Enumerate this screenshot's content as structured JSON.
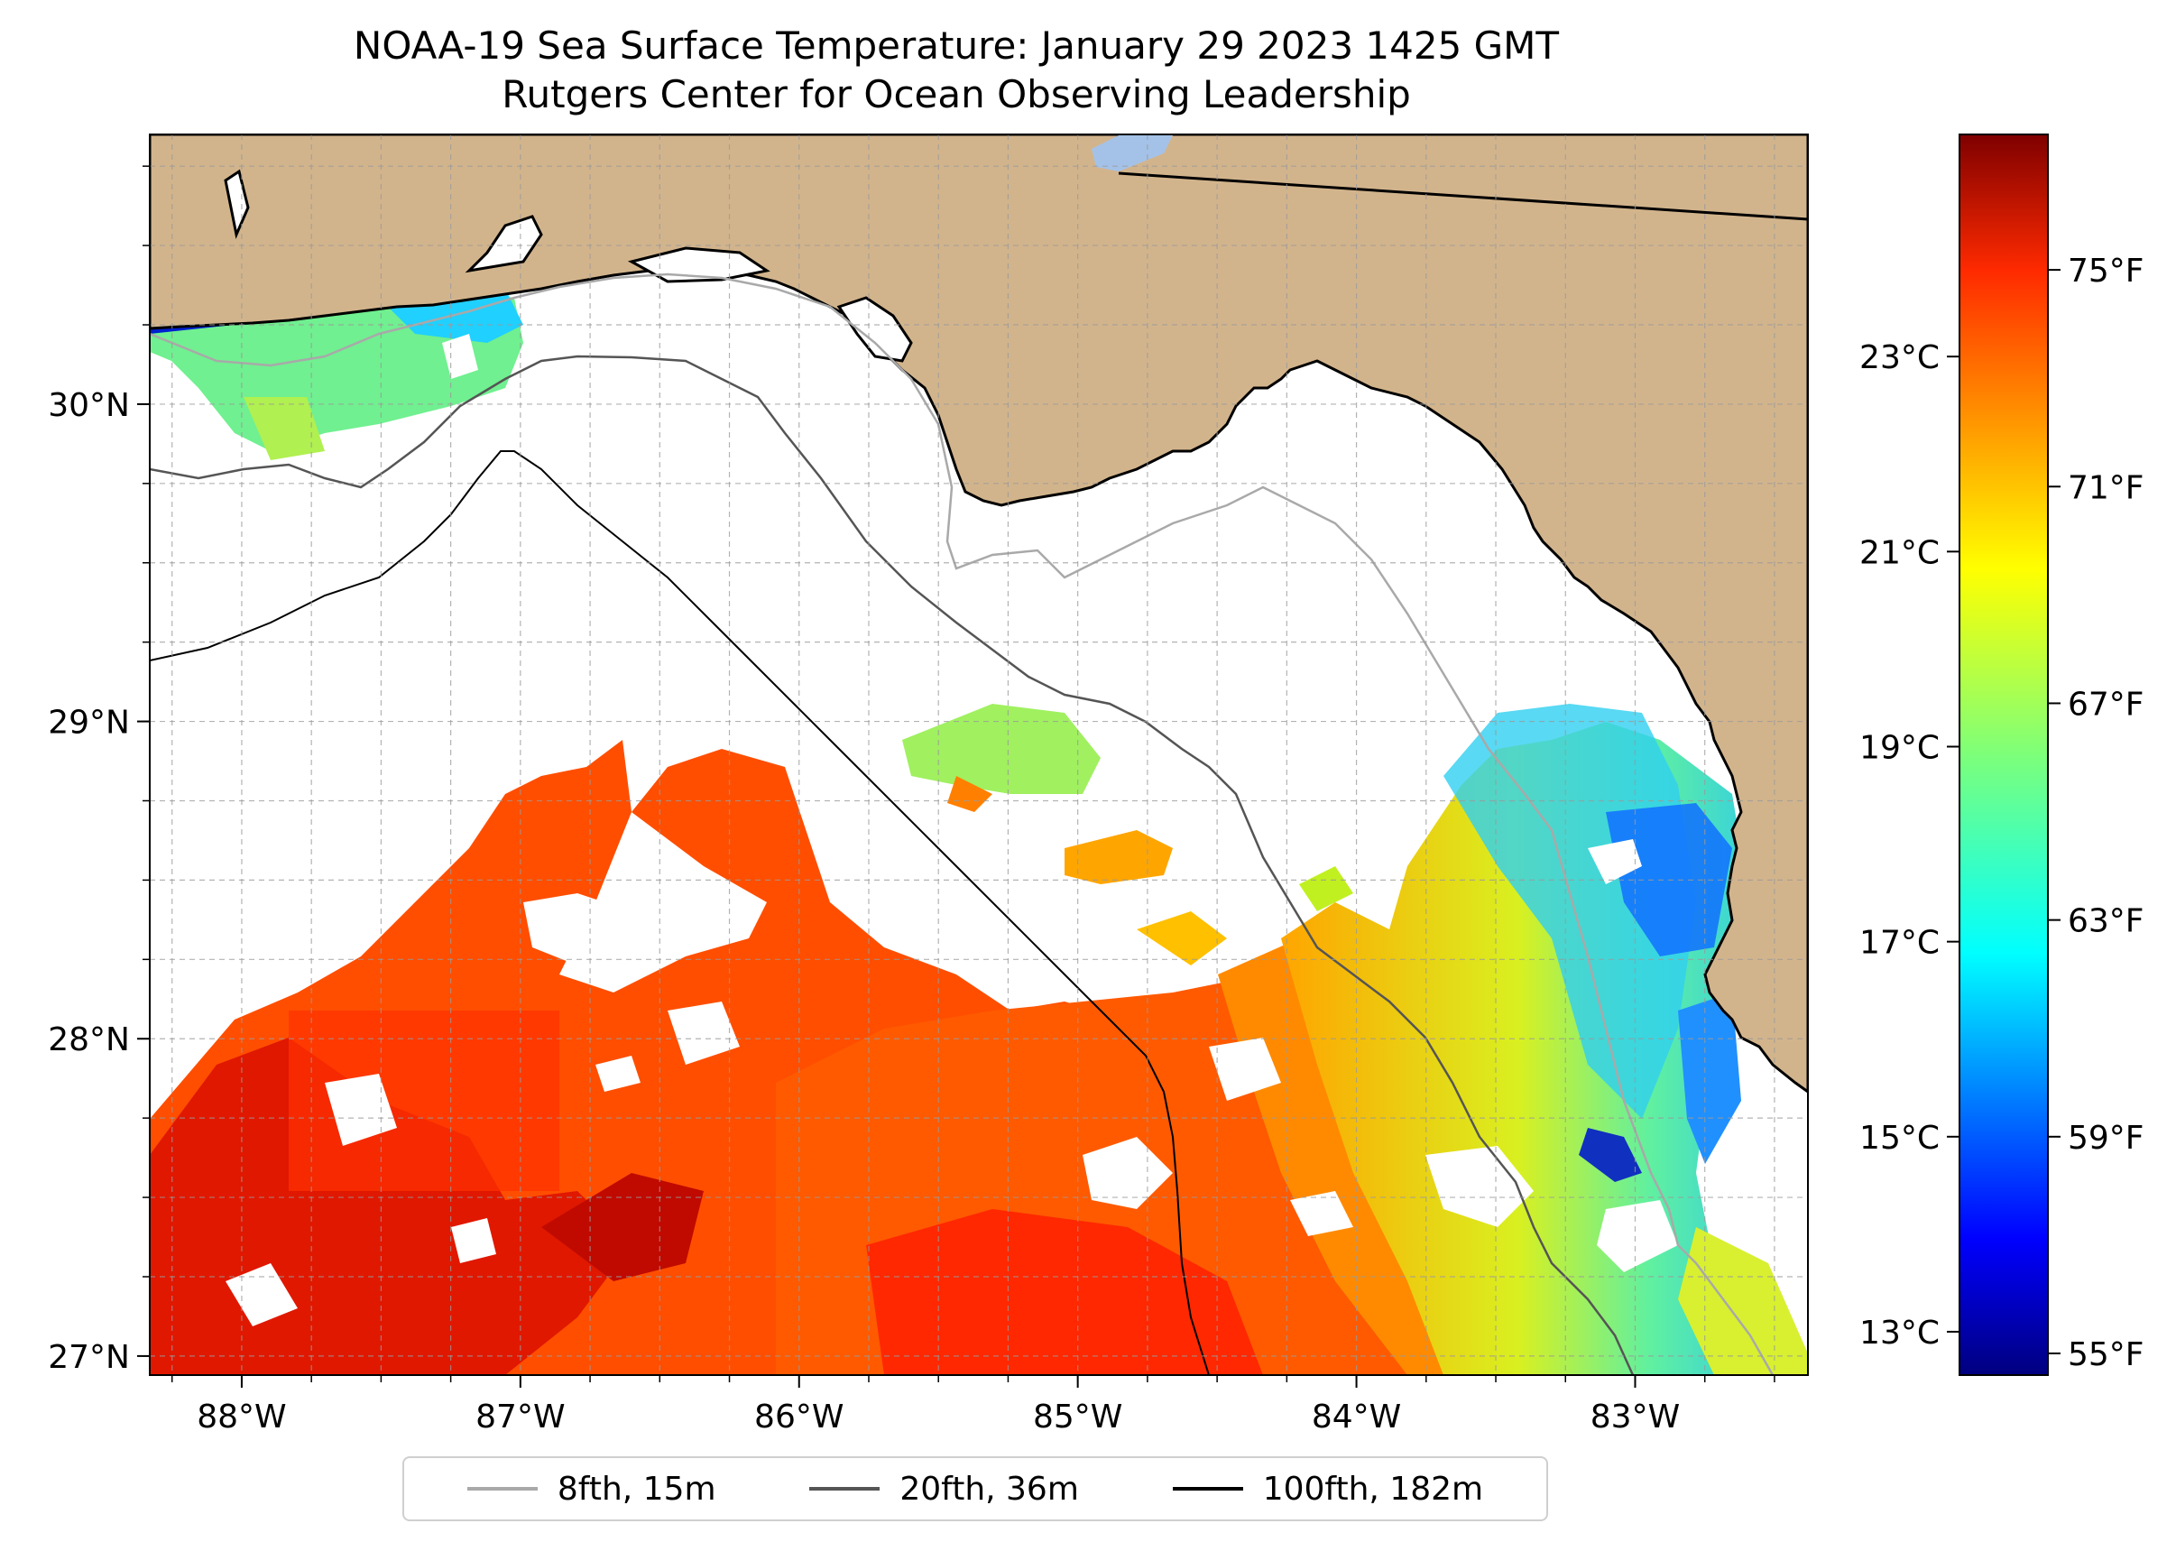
{
  "title": "NOAA-19 Sea Surface Temperature: January 29 2023 1425 GMT",
  "subtitle": "Rutgers Center for Ocean Observing Leadership",
  "map": {
    "lon_range": [
      -88.33,
      -82.38
    ],
    "lat_range": [
      26.94,
      30.85
    ],
    "lon_ticks": [
      {
        "value": -88,
        "label": "88°W"
      },
      {
        "value": -87,
        "label": "87°W"
      },
      {
        "value": -86,
        "label": "86°W"
      },
      {
        "value": -85,
        "label": "85°W"
      },
      {
        "value": -84,
        "label": "84°W"
      },
      {
        "value": -83,
        "label": "83°W"
      }
    ],
    "lat_ticks": [
      {
        "value": 30,
        "label": "30°N"
      },
      {
        "value": 29,
        "label": "29°N"
      },
      {
        "value": 28,
        "label": "28°N"
      },
      {
        "value": 27,
        "label": "27°N"
      }
    ],
    "gridlines": true,
    "land_color": "#d2b48c"
  },
  "colorbar": {
    "colormap": "jet",
    "range_f": [
      54.6,
      77.5
    ],
    "celsius_ticks": [
      {
        "value": 23,
        "label": "23°C"
      },
      {
        "value": 21,
        "label": "21°C"
      },
      {
        "value": 19,
        "label": "19°C"
      },
      {
        "value": 17,
        "label": "17°C"
      },
      {
        "value": 15,
        "label": "15°C"
      },
      {
        "value": 13,
        "label": "13°C"
      }
    ],
    "fahrenheit_ticks": [
      {
        "value": 75,
        "label": "75°F"
      },
      {
        "value": 71,
        "label": "71°F"
      },
      {
        "value": 67,
        "label": "67°F"
      },
      {
        "value": 63,
        "label": "63°F"
      },
      {
        "value": 59,
        "label": "59°F"
      },
      {
        "value": 55,
        "label": "55°F"
      }
    ]
  },
  "legend": {
    "items": [
      {
        "label": "8fth, 15m",
        "color": "#a9a9a9"
      },
      {
        "label": "20fth, 36m",
        "color": "#555555"
      },
      {
        "label": "100fth, 182m",
        "color": "#000000"
      }
    ]
  }
}
